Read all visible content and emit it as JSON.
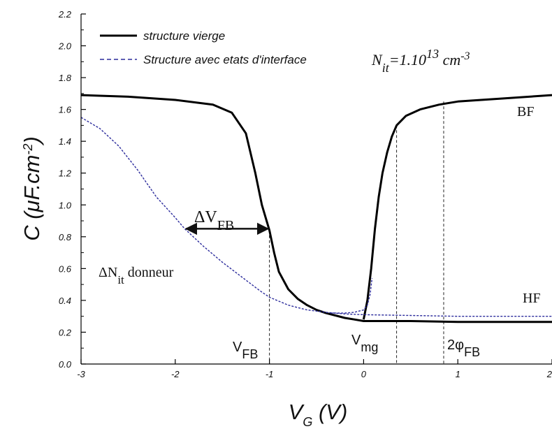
{
  "chart_data": {
    "type": "line",
    "xlim": [
      -3,
      2
    ],
    "ylim": [
      0.0,
      2.2
    ],
    "x_ticks": [
      "-3",
      "-2",
      "-1",
      "0",
      "1",
      "2"
    ],
    "y_ticks": [
      "0.0",
      "0.2",
      "0.4",
      "0.6",
      "0.8",
      "1.0",
      "1.2",
      "1.4",
      "1.6",
      "1.8",
      "2.0",
      "2.2"
    ],
    "xlabel": {
      "main": "V",
      "sub": "G",
      "unit": " (V)"
    },
    "ylabel": {
      "main": "C (μF.cm",
      "sup": "-2",
      "close": ")"
    },
    "legend": {
      "placement": "top-left",
      "items": [
        {
          "label": "structure vierge",
          "style": "solid",
          "color": "#000000"
        },
        {
          "label": "Structure avec etats d'interface",
          "style": "dashed",
          "color": "#2b2b9c"
        }
      ],
      "formula": {
        "n": "N",
        "n_sub": "it",
        "eq": "=1.10",
        "exp": "13",
        "unit": " cm",
        "unit_exp": "-3"
      }
    },
    "series": [
      {
        "name": "structure vierge",
        "color": "#000000",
        "style": "solid",
        "branches": [
          [
            [
              -3.0,
              1.69
            ],
            [
              -2.5,
              1.68
            ],
            [
              -2.0,
              1.66
            ],
            [
              -1.6,
              1.63
            ],
            [
              -1.4,
              1.58
            ],
            [
              -1.25,
              1.45
            ],
            [
              -1.15,
              1.2
            ],
            [
              -1.08,
              1.0
            ],
            [
              -1.0,
              0.84
            ],
            [
              -0.95,
              0.7
            ],
            [
              -0.9,
              0.58
            ],
            [
              -0.8,
              0.47
            ],
            [
              -0.7,
              0.41
            ],
            [
              -0.6,
              0.37
            ],
            [
              -0.5,
              0.34
            ],
            [
              -0.4,
              0.32
            ],
            [
              -0.3,
              0.305
            ],
            [
              -0.2,
              0.29
            ],
            [
              -0.1,
              0.28
            ],
            [
              0.0,
              0.27
            ],
            [
              0.05,
              0.27
            ],
            [
              0.2,
              0.27
            ],
            [
              0.5,
              0.27
            ],
            [
              1.0,
              0.265
            ],
            [
              1.5,
              0.265
            ],
            [
              2.0,
              0.265
            ]
          ],
          [
            [
              0.0,
              0.28
            ],
            [
              0.04,
              0.4
            ],
            [
              0.08,
              0.6
            ],
            [
              0.12,
              0.85
            ],
            [
              0.16,
              1.05
            ],
            [
              0.2,
              1.2
            ],
            [
              0.25,
              1.33
            ],
            [
              0.3,
              1.43
            ],
            [
              0.35,
              1.5
            ],
            [
              0.45,
              1.56
            ],
            [
              0.6,
              1.6
            ],
            [
              0.8,
              1.63
            ],
            [
              1.0,
              1.65
            ],
            [
              1.5,
              1.67
            ],
            [
              2.0,
              1.69
            ]
          ]
        ]
      },
      {
        "name": "Structure avec etats d'interface",
        "color": "#2b2b9c",
        "style": "dashed",
        "branches": [
          [
            [
              -3.0,
              1.55
            ],
            [
              -2.8,
              1.48
            ],
            [
              -2.6,
              1.37
            ],
            [
              -2.4,
              1.22
            ],
            [
              -2.2,
              1.05
            ],
            [
              -2.0,
              0.92
            ],
            [
              -1.9,
              0.85
            ],
            [
              -1.7,
              0.74
            ],
            [
              -1.5,
              0.64
            ],
            [
              -1.3,
              0.55
            ],
            [
              -1.1,
              0.46
            ],
            [
              -1.0,
              0.42
            ],
            [
              -0.8,
              0.37
            ],
            [
              -0.6,
              0.34
            ],
            [
              -0.4,
              0.325
            ],
            [
              -0.2,
              0.315
            ],
            [
              0.0,
              0.31
            ],
            [
              0.5,
              0.305
            ],
            [
              1.0,
              0.3
            ],
            [
              1.5,
              0.3
            ],
            [
              2.0,
              0.3
            ]
          ],
          [
            [
              -0.35,
              0.32
            ],
            [
              -0.2,
              0.32
            ],
            [
              -0.1,
              0.325
            ],
            [
              0.0,
              0.34
            ],
            [
              0.04,
              0.37
            ],
            [
              0.07,
              0.44
            ],
            [
              0.09,
              0.54
            ]
          ]
        ]
      }
    ],
    "markers": [
      {
        "x": -1.0,
        "label": "V",
        "sub": "FB"
      },
      {
        "x": 0.35,
        "label": "",
        "sub": ""
      },
      {
        "x": 0.85,
        "label": "",
        "sub": ""
      }
    ],
    "annotations": {
      "dvfb": {
        "label": "ΔV",
        "sub": "FB",
        "x1": -1.9,
        "x2": -1.0,
        "y": 0.85
      },
      "dnit": {
        "label": "ΔN",
        "sub": "it",
        "rest": " donneur"
      },
      "vmg": {
        "label": "V",
        "sub": "mg"
      },
      "phi": {
        "label": "2φ",
        "sub": "FB"
      },
      "bf": "BF",
      "hf": "HF"
    }
  }
}
